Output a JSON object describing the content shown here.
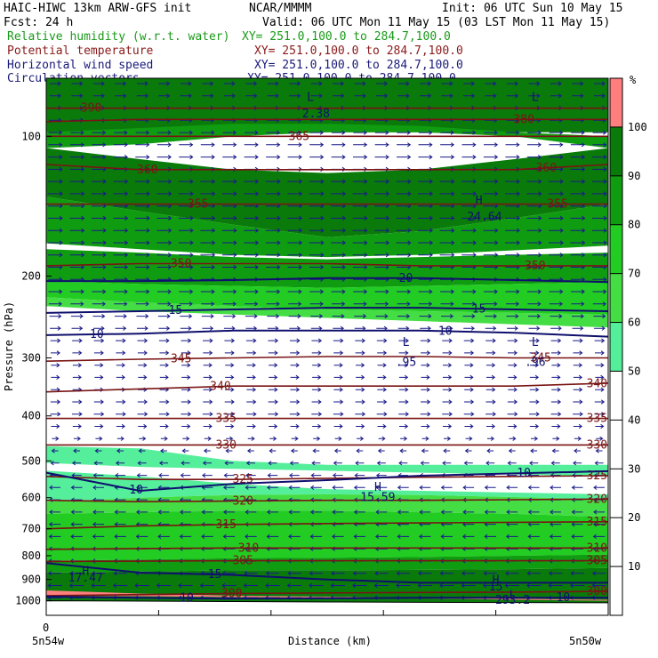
{
  "header": {
    "model": "HAIC-HIWC 13km ARW-GFS init",
    "org": "NCAR/MMMM",
    "init": "Init: 06 UTC Sun 10 May 15",
    "fcst": "Fcst:   24 h",
    "valid": "Valid: 06 UTC Mon 11 May 15 (03 LST Mon 11 May 15)",
    "fields": [
      {
        "name": "Relative humidity (w.r.t. water)",
        "xy": "XY= 251.0,100.0 to 284.7,100.0",
        "color": "#1a9a1a"
      },
      {
        "name": "Potential temperature",
        "xy": "XY= 251.0,100.0 to 284.7,100.0",
        "color": "#8b1a1a"
      },
      {
        "name": "Horizontal wind speed",
        "xy": "XY= 251.0,100.0 to 284.7,100.0",
        "color": "#1a1a7a"
      },
      {
        "name": "Circulation vectors",
        "xy": "XY= 251.0,100.0 to 284.7,100.0",
        "color": "#1a1a7a"
      }
    ]
  },
  "chart_data": {
    "type": "heatmap",
    "ylabel": "Pressure (hPa)",
    "xlabel": "Distance (km)",
    "x_origin_label": "0",
    "x_left_label": "5n54w",
    "x_right_label": "5n50w",
    "y_scale": "log",
    "ylim": [
      1075,
      75
    ],
    "y_ticks": [
      100,
      200,
      300,
      400,
      500,
      600,
      700,
      800,
      900,
      1000
    ],
    "x_fraction_ticks": [
      0,
      0.2,
      0.4,
      0.6,
      0.8,
      1.0
    ],
    "colorbar": {
      "unit": "%",
      "ticks": [
        10,
        20,
        30,
        40,
        50,
        60,
        70,
        80,
        90,
        100
      ],
      "bands": [
        {
          "from": 50,
          "to": 60,
          "color": "#55ee9a"
        },
        {
          "from": 60,
          "to": 70,
          "color": "#44dd44"
        },
        {
          "from": 70,
          "to": 80,
          "color": "#22cc22"
        },
        {
          "from": 80,
          "to": 90,
          "color": "#109c10"
        },
        {
          "from": 90,
          "to": 100,
          "color": "#0a7a0a"
        },
        {
          "from": 100,
          "to": 110,
          "color": "#ff7f7f"
        }
      ]
    },
    "rh_regions": [
      {
        "level": 90,
        "top": [
          75,
          75,
          75,
          75,
          75,
          75,
          75
        ],
        "bottom": [
          98,
          98,
          98,
          98,
          98,
          98,
          98
        ]
      },
      {
        "level": 80,
        "top": [
          98,
          96,
          94,
          94,
          95,
          98,
          100
        ],
        "bottom": [
          106,
          104,
          100,
          98,
          98,
          100,
          106
        ]
      },
      {
        "level": 90,
        "top": [
          106,
          112,
          118,
          120,
          118,
          112,
          106
        ],
        "bottom": [
          135,
          145,
          155,
          165,
          160,
          150,
          140
        ]
      },
      {
        "level": 80,
        "top": [
          135,
          145,
          155,
          165,
          160,
          150,
          140
        ],
        "bottom": [
          170,
          175,
          180,
          182,
          180,
          176,
          172
        ]
      },
      {
        "level": 80,
        "top": [
          175,
          178,
          182,
          184,
          182,
          180,
          178
        ],
        "bottom": [
          205,
          208,
          210,
          212,
          210,
          208,
          206
        ]
      },
      {
        "level": 70,
        "top": [
          205,
          208,
          210,
          212,
          210,
          208,
          206
        ],
        "bottom": [
          222,
          228,
          232,
          236,
          238,
          240,
          242
        ]
      },
      {
        "level": 60,
        "top": [
          222,
          228,
          232,
          236,
          238,
          240,
          242
        ],
        "bottom": [
          232,
          238,
          242,
          246,
          250,
          254,
          258
        ]
      },
      {
        "level": 50,
        "top": [
          465,
          470,
          500,
          510,
          510,
          510,
          510
        ],
        "bottom": [
          505,
          515,
          520,
          525,
          530,
          535,
          540
        ]
      },
      {
        "level": 50,
        "top": [
          525,
          540,
          560,
          575,
          580,
          585,
          590
        ],
        "bottom": [
          612,
          600,
          592,
          590,
          592,
          598,
          605
        ]
      },
      {
        "level": 60,
        "top": [
          612,
          600,
          592,
          590,
          592,
          598,
          605
        ],
        "bottom": [
          650,
          645,
          640,
          640,
          645,
          650,
          660
        ]
      },
      {
        "level": 70,
        "top": [
          650,
          645,
          640,
          640,
          645,
          650,
          660
        ],
        "bottom": [
          820,
          815,
          810,
          808,
          805,
          800,
          795
        ]
      },
      {
        "level": 80,
        "top": [
          820,
          815,
          810,
          808,
          805,
          800,
          795
        ],
        "bottom": [
          870,
          865,
          860,
          860,
          858,
          855,
          850
        ]
      },
      {
        "level": 90,
        "top": [
          870,
          865,
          860,
          860,
          858,
          855,
          850
        ],
        "bottom": [
          1005,
          1005,
          1005,
          1006,
          1008,
          1010,
          1010
        ]
      },
      {
        "level": 100,
        "top": [
          950,
          965,
          975,
          980,
          985,
          990,
          995
        ],
        "bottom": [
          975,
          978,
          982,
          985,
          988,
          995,
          1000
        ]
      }
    ],
    "theta_contours": [
      {
        "value": 300,
        "y": [
          975,
          970,
          965,
          962,
          960,
          958,
          955
        ],
        "label_x": [
          0.33,
          0.98
        ]
      },
      {
        "value": 305,
        "y": [
          823,
          822,
          820,
          820,
          820,
          820,
          820
        ],
        "label_x": [
          0.35,
          0.98
        ]
      },
      {
        "value": 310,
        "y": [
          775,
          772,
          770,
          770,
          770,
          770,
          770
        ],
        "label_x": [
          0.36,
          0.98
        ]
      },
      {
        "value": 315,
        "y": [
          700,
          690,
          685,
          682,
          680,
          678,
          676
        ],
        "label_x": [
          0.32,
          0.98
        ]
      },
      {
        "value": 320,
        "y": [
          608,
          612,
          610,
          608,
          608,
          606,
          604
        ],
        "label_x": [
          0.35,
          0.98
        ]
      },
      {
        "value": 325,
        "y": [
          540,
          548,
          548,
          545,
          542,
          540,
          538
        ],
        "label_x": [
          0.35,
          0.98
        ]
      },
      {
        "value": 330,
        "y": [
          462,
          462,
          462,
          462,
          462,
          462,
          462
        ],
        "label_x": [
          0.32,
          0.98
        ]
      },
      {
        "value": 335,
        "y": [
          405,
          405,
          405,
          405,
          405,
          405,
          405
        ],
        "label_x": [
          0.32,
          0.98
        ]
      },
      {
        "value": 340,
        "y": [
          355,
          350,
          345,
          345,
          345,
          345,
          340
        ],
        "label_x": [
          0.31,
          0.98
        ]
      },
      {
        "value": 345,
        "y": [
          305,
          302,
          300,
          298,
          298,
          300,
          300
        ],
        "label_x": [
          0.24,
          0.88
        ]
      },
      {
        "value": 350,
        "y": [
          190,
          188,
          188,
          188,
          190,
          190,
          190
        ],
        "label_x": [
          0.24,
          0.87
        ]
      },
      {
        "value": 355,
        "y": [
          140,
          140,
          140,
          140,
          140,
          140,
          140
        ],
        "label_x": [
          0.27,
          0.91
        ]
      },
      {
        "value": 360,
        "y": [
          115,
          118,
          118,
          118,
          118,
          118,
          115
        ],
        "label_x": [
          0.18,
          0.89
        ]
      },
      {
        "value": 365,
        "y": [
          100,
          100,
          100,
          100,
          100,
          100,
          100
        ],
        "label_x": [
          0.45
        ]
      },
      {
        "value": 380,
        "y": [
          93,
          92,
          92,
          92,
          92,
          92,
          92
        ],
        "label_x": [
          0.85
        ]
      },
      {
        "value": 390,
        "y": [
          87,
          87,
          87,
          87,
          87,
          87,
          87
        ],
        "label_x": [
          0.08
        ]
      }
    ],
    "wind_contours": [
      {
        "value": 10,
        "y": [
          268,
          266,
          262,
          262,
          262,
          265,
          270
        ],
        "label_x": [
          0.09,
          0.71
        ]
      },
      {
        "value": 15,
        "y": [
          240,
          238,
          236,
          234,
          234,
          236,
          238
        ],
        "label_x": [
          0.23,
          0.77
        ]
      },
      {
        "value": 20,
        "y": [
          205,
          205,
          204,
          202,
          202,
          204,
          206
        ],
        "label_x": [
          0.64
        ]
      },
      {
        "value": 10,
        "y": [
          530,
          580,
          560,
          550,
          538,
          532,
          526
        ],
        "label_x": [
          0.16,
          0.85
        ]
      },
      {
        "value": 15,
        "y": [
          830,
          870,
          880,
          900,
          915,
          915,
          915
        ],
        "label_x": [
          0.3
        ]
      },
      {
        "value": 10,
        "y": [
          980,
          985,
          990,
          988,
          985,
          985,
          985
        ],
        "label_x": [
          0.25,
          0.92
        ]
      }
    ],
    "extrema": [
      {
        "text": "L",
        "x": 0.47,
        "p": 84
      },
      {
        "text": "2.38",
        "x": 0.48,
        "p": 91
      },
      {
        "text": "L",
        "x": 0.87,
        "p": 84
      },
      {
        "text": "H",
        "x": 0.77,
        "p": 140
      },
      {
        "text": "24.64",
        "x": 0.78,
        "p": 152
      },
      {
        "text": "L",
        "x": 0.64,
        "p": 283
      },
      {
        "text": ".95",
        "x": 0.64,
        "p": 312
      },
      {
        "text": "L",
        "x": 0.87,
        "p": 283
      },
      {
        "text": ".96",
        "x": 0.87,
        "p": 312
      },
      {
        "text": "H",
        "x": 0.59,
        "p": 580
      },
      {
        "text": "15.59",
        "x": 0.59,
        "p": 610
      },
      {
        "text": "H",
        "x": 0.07,
        "p": 880
      },
      {
        "text": "17.47",
        "x": 0.07,
        "p": 910
      },
      {
        "text": "H",
        "x": 0.8,
        "p": 920
      },
      {
        "text": "15",
        "x": 0.8,
        "p": 950
      },
      {
        "text": "L",
        "x": 0.83,
        "p": 990
      },
      {
        "text": "293.2",
        "x": 0.83,
        "p": 1015
      }
    ],
    "wind_profile": [
      {
        "p": 80,
        "u": 0.6
      },
      {
        "p": 100,
        "u": 0.9
      },
      {
        "p": 130,
        "u": 1.0
      },
      {
        "p": 170,
        "u": 1.0
      },
      {
        "p": 220,
        "u": 0.9
      },
      {
        "p": 270,
        "u": 0.5
      },
      {
        "p": 320,
        "u": 0.3
      },
      {
        "p": 400,
        "u": 0.5
      },
      {
        "p": 500,
        "u": -0.3
      },
      {
        "p": 560,
        "u": -0.6
      },
      {
        "p": 650,
        "u": -0.6
      },
      {
        "p": 750,
        "u": -0.7
      },
      {
        "p": 850,
        "u": -0.8
      },
      {
        "p": 950,
        "u": -1.0
      },
      {
        "p": 1005,
        "u": -1.0
      }
    ],
    "terrain": {
      "y": [
        1000,
        1002,
        1004,
        1006,
        1008,
        1009,
        1010
      ]
    }
  }
}
